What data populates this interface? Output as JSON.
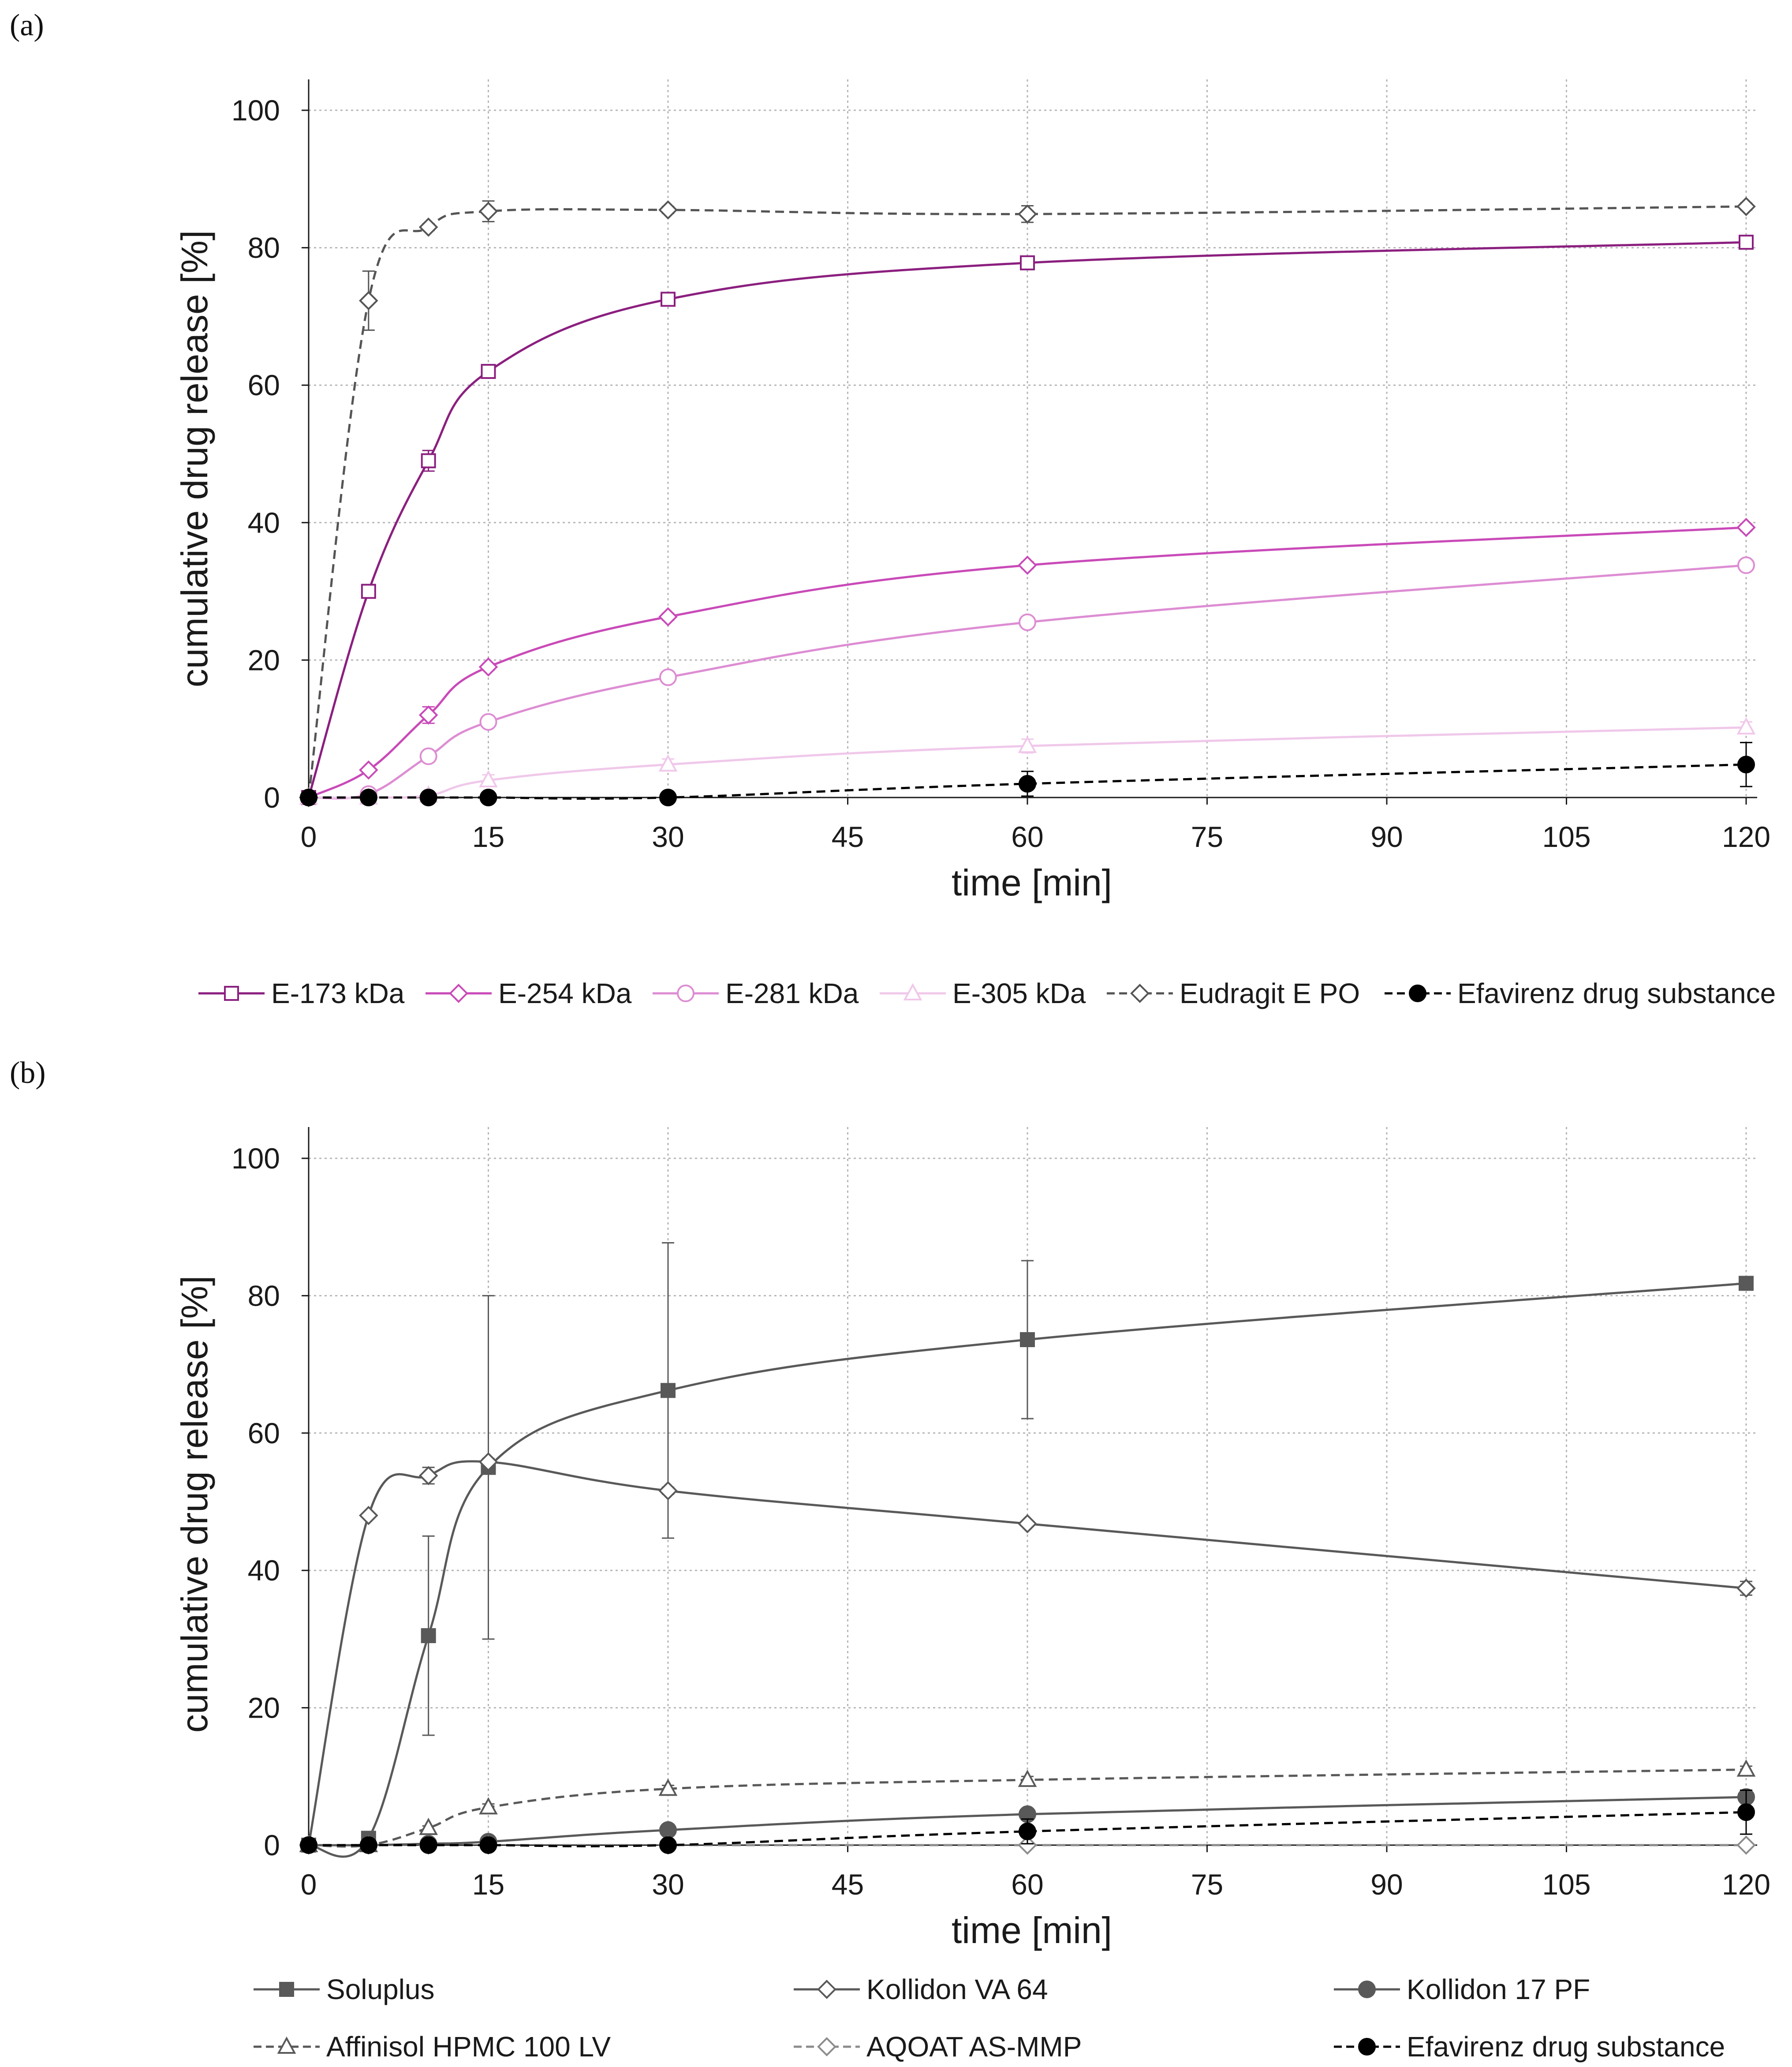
{
  "chart_data": [
    {
      "panel_label": "(a)",
      "type": "line",
      "xlabel": "time [min]",
      "ylabel": "cumulative drug release [%]",
      "xlim": [
        0,
        120
      ],
      "ylim": [
        0,
        100
      ],
      "xticks": [
        0,
        15,
        30,
        45,
        60,
        75,
        90,
        105,
        120
      ],
      "yticks": [
        0,
        20,
        40,
        60,
        80,
        100
      ],
      "grid": "dotted",
      "legend_position": "bottom",
      "series": [
        {
          "name": "E-173 kDa",
          "color": "#8b1f7f",
          "marker": "square-open",
          "dash": "solid",
          "x": [
            0,
            5,
            10,
            15,
            30,
            60,
            120
          ],
          "y": [
            0,
            30,
            49,
            62,
            72.5,
            77.8,
            80.8
          ],
          "err": [
            0,
            0,
            1.5,
            0.8,
            0.5,
            0.5,
            0.8
          ]
        },
        {
          "name": "E-254 kDa",
          "color": "#c94ab8",
          "marker": "diamond-open",
          "dash": "solid",
          "x": [
            0,
            5,
            10,
            15,
            30,
            60,
            120
          ],
          "y": [
            0,
            4,
            12,
            19,
            26.3,
            33.8,
            39.3
          ],
          "err": [
            0,
            0,
            1.2,
            0.5,
            0.5,
            0.5,
            0.5
          ]
        },
        {
          "name": "E-281 kDa",
          "color": "#dd8dd3",
          "marker": "circle-open",
          "dash": "solid",
          "x": [
            0,
            5,
            10,
            15,
            30,
            60,
            120
          ],
          "y": [
            0,
            0.5,
            6,
            11,
            17.5,
            25.5,
            33.8
          ],
          "err": [
            0,
            0,
            0.5,
            0.5,
            0.5,
            0.5,
            0.5
          ]
        },
        {
          "name": "E-305 kDa",
          "color": "#f0c8ea",
          "marker": "triangle-open",
          "dash": "solid",
          "x": [
            0,
            5,
            10,
            15,
            30,
            60,
            120
          ],
          "y": [
            0,
            0,
            0.3,
            2.5,
            4.8,
            7.5,
            10.2
          ],
          "err": [
            0,
            0,
            0.3,
            0.8,
            0.8,
            1,
            0.8
          ]
        },
        {
          "name": "Eudragit E PO",
          "color": "#555555",
          "marker": "diamond-open",
          "dash": "dashed",
          "x": [
            0,
            5,
            10,
            15,
            30,
            60,
            120
          ],
          "y": [
            0,
            72.3,
            83,
            85.3,
            85.5,
            84.9,
            86
          ],
          "err": [
            0,
            4.3,
            0.5,
            1.5,
            0.5,
            1.2,
            0.5
          ]
        },
        {
          "name": "Efavirenz drug substance",
          "color": "#000000",
          "marker": "circle-filled",
          "dash": "dashed",
          "x": [
            0,
            5,
            10,
            15,
            30,
            60,
            120
          ],
          "y": [
            0,
            0,
            0,
            0,
            0,
            2,
            4.8
          ],
          "err": [
            0,
            0,
            0,
            0,
            0,
            1.8,
            3.2
          ]
        }
      ]
    },
    {
      "panel_label": "(b)",
      "type": "line",
      "xlabel": "time [min]",
      "ylabel": "cumulative drug release [%]",
      "xlim": [
        0,
        120
      ],
      "ylim": [
        0,
        100
      ],
      "xticks": [
        0,
        15,
        30,
        45,
        60,
        75,
        90,
        105,
        120
      ],
      "yticks": [
        0,
        20,
        40,
        60,
        80,
        100
      ],
      "grid": "dotted",
      "legend_position": "bottom",
      "series": [
        {
          "name": "Soluplus",
          "color": "#595959",
          "marker": "square-filled",
          "dash": "solid",
          "x": [
            0,
            5,
            10,
            15,
            30,
            60,
            120
          ],
          "y": [
            0,
            1,
            30.5,
            55,
            66.2,
            73.6,
            81.8
          ],
          "err": [
            0,
            0,
            14.5,
            25,
            21.5,
            11.5,
            0.5
          ]
        },
        {
          "name": "Kollidon VA 64",
          "color": "#595959",
          "marker": "diamond-open",
          "dash": "solid",
          "x": [
            0,
            5,
            10,
            15,
            30,
            60,
            120
          ],
          "y": [
            0,
            48,
            53.8,
            55.8,
            51.6,
            46.8,
            37.4
          ],
          "err": [
            0,
            0.3,
            1.2,
            0.5,
            0.5,
            0.3,
            1
          ]
        },
        {
          "name": "Kollidon 17 PF",
          "color": "#595959",
          "marker": "circle-filled",
          "dash": "solid",
          "x": [
            0,
            5,
            10,
            15,
            30,
            60,
            120
          ],
          "y": [
            0,
            0,
            0.2,
            0.5,
            2.2,
            4.5,
            7
          ],
          "err": [
            0,
            0,
            0,
            0,
            0,
            0,
            0.8
          ]
        },
        {
          "name": "Affinisol HPMC 100 LV",
          "color": "#595959",
          "marker": "triangle-open",
          "dash": "dashed",
          "x": [
            0,
            5,
            10,
            15,
            30,
            60,
            120
          ],
          "y": [
            0,
            0,
            2.5,
            5.5,
            8.2,
            9.5,
            11
          ],
          "err": [
            0,
            0,
            0.3,
            0.5,
            0.5,
            0.5,
            0.5
          ]
        },
        {
          "name": "AQOAT AS-MMP",
          "color": "#8c8c8c",
          "marker": "diamond-open",
          "dash": "dashed",
          "x": [
            0,
            5,
            10,
            15,
            30,
            60,
            120
          ],
          "y": [
            0,
            0,
            0,
            0,
            0,
            0,
            0
          ],
          "err": [
            0,
            0,
            0,
            0,
            0,
            0,
            0
          ]
        },
        {
          "name": "Efavirenz drug substance",
          "color": "#000000",
          "marker": "circle-filled",
          "dash": "dashed",
          "x": [
            0,
            5,
            10,
            15,
            30,
            60,
            120
          ],
          "y": [
            0,
            0,
            0,
            0,
            0,
            2,
            4.8
          ],
          "err": [
            0,
            0,
            0,
            0,
            0,
            1.8,
            3.2
          ]
        }
      ]
    }
  ]
}
